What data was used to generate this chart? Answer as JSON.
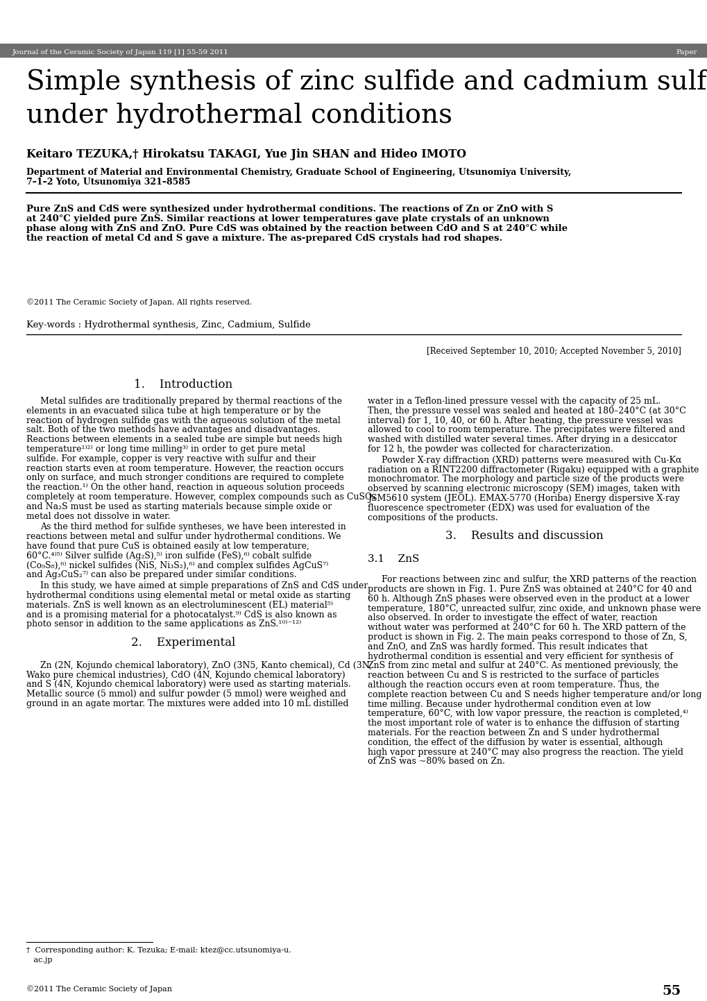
{
  "header_bar_color": "#6e6e6e",
  "header_text": "Journal of the Ceramic Society of Japan 119 [1] 55-59 2011",
  "header_right_text": "Paper",
  "title_line1": "Simple synthesis of zinc sulfide and cadmium sulfide",
  "title_line2": "under hydrothermal conditions",
  "title_font_size": 28,
  "authors": "Keitaro TEZUKA,† Hirokatsu TAKAGI, Yue Jin SHAN and Hideo IMOTO",
  "authors_font_size": 11.5,
  "affiliation_line1": "Department of Material and Environmental Chemistry, Graduate School of Engineering, Utsunomiya University,",
  "affiliation_line2": "7–1–2 Yoto, Utsunomiya 321–8585",
  "affiliation_font_size": 9,
  "abstract_text": "Pure ZnS and CdS were synthesized under hydrothermal conditions. The reactions of Zn or ZnO with S at 240°C yielded pure ZnS. Similar reactions at lower temperatures gave plate crystals of an unknown phase along with ZnS and ZnO. Pure CdS was obtained by the reaction between CdO and S at 240°C while the reaction of metal Cd and S gave a mixture. The as-prepared CdS crystals had rod shapes.",
  "abstract_font_size": 9.5,
  "copyright_text": "©2011 The Ceramic Society of Japan. All rights reserved.",
  "copyright_font_size": 8,
  "keywords": "Key-words : Hydrothermal synthesis, Zinc, Cadmium, Sulfide",
  "keywords_font_size": 9.5,
  "received_text": "[Received September 10, 2010; Accepted November 5, 2010]",
  "received_font_size": 8.5,
  "section1_title": "1.    Introduction",
  "section_font_size": 12,
  "intro_p1": "Metal sulfides are traditionally prepared by thermal reactions of the elements in an evacuated silica tube at high temperature or by the reaction of hydrogen sulfide gas with the aqueous solution of the metal salt. Both of the two methods have advantages and disadvantages. Reactions between elements in a sealed tube are simple but needs high temperature¹⁾²⁾ or long time milling³⁾ in order to get pure metal sulfide. For example, copper is very reactive with sulfur and their reaction starts even at room temperature. However, the reaction occurs only on surface, and much stronger conditions are required to complete the reaction.¹⁾ On the other hand, reaction in aqueous solution proceeds completely at room temperature. However, complex compounds such as CuSO₄ and Na₂S must be used as starting materials because simple oxide or metal does not dissolve in water.",
  "intro_p2": "As the third method for sulfide syntheses, we have been interested in reactions between metal and sulfur under hydrothermal conditions. We have found that pure CuS is obtained easily at low temperature, 60°C.⁴⁾⁵⁾ Silver sulfide (Ag₂S),⁵⁾ iron sulfide (FeS),⁶⁾ cobalt sulfide (Co₉S₈),⁶⁾ nickel sulfides (NiS, Ni₃S₂),⁶⁾ and complex sulfides AgCuS⁷⁾ and Ag₃CuS₂⁷⁾ can also be prepared under similar conditions.",
  "intro_p3": "In this study, we have aimed at simple preparations of ZnS and CdS under hydrothermal conditions using elemental metal or metal oxide as starting materials. ZnS is well known as an electroluminescent (EL) material⁵⁾ and is a promising material for a photocatalyst.⁹⁾ CdS is also known as photo sensor in addition to the same applications as ZnS.¹⁰⁾⁻¹²⁾",
  "section2_title": "2.    Experimental",
  "exp_p1": "Zn (2N, Kojundo chemical laboratory), ZnO (3N5, Kanto chemical), Cd (3N, Wako pure chemical industries), CdO (4N, Kojundo chemical laboratory) and S (4N, Kojundo chemical laboratory) were used as starting materials. Metallic source (5 mmol) and sulfur powder (5 mmol) were weighed and ground in an agate mortar. The mixtures were added into 10 mL distilled",
  "right_exp_cont": "water in a Teflon-lined pressure vessel with the capacity of 25 mL. Then, the pressure vessel was sealed and heated at 180–240°C (at 30°C interval) for 1, 10, 40, or 60 h. After heating, the pressure vessel was allowed to cool to room temperature. The precipitates were filtered and washed with distilled water several times. After drying in a desiccator for 12 h, the powder was collected for characterization.",
  "right_xrd_p": "Powder X-ray diffraction (XRD) patterns were measured with Cu-Kα radiation on a RINT2200 diffractometer (Rigaku) equipped with a graphite monochromator. The morphology and particle size of the products were observed by scanning electronic microscopy (SEM) images, taken with JSM5610 system (JEOL). EMAX-5770 (Horiba) Energy dispersive X-ray fluorescence spectrometer (EDX) was used for evaluation of the compositions of the products.",
  "section3_title": "3.    Results and discussion",
  "section31_title": "3.1    ZnS",
  "section31_font_size": 11,
  "zns_p1": "For reactions between zinc and sulfur, the XRD patterns of the reaction products are shown in Fig. 1. Pure ZnS was obtained at 240°C for 40 and 60 h. Although ZnS phases were observed even in the product at a lower temperature, 180°C, unreacted sulfur, zinc oxide, and unknown phase were also observed. In order to investigate the effect of water, reaction without water was performed at 240°C for 60 h. The XRD pattern of the product is shown in Fig. 2. The main peaks correspond to those of Zn, S, and ZnO, and ZnS was hardly formed. This result indicates that hydrothermal condition is essential and very efficient for synthesis of ZnS from zinc metal and sulfur at 240°C. As mentioned previously, the reaction between Cu and S is restricted to the surface of particles although the reaction occurs even at room temperature. Thus, the complete reaction between Cu and S needs higher temperature and/or long time milling. Because under hydrothermal condition even at low temperature, 60°C, with low vapor pressure, the reaction is completed,⁴⁾ the most important role of water is to enhance the diffusion of starting materials. For the reaction between Zn and S under hydrothermal condition, the effect of the diffusion by water is essential, although high vapor pressure at 240°C may also progress the reaction. The yield of ZnS was ~80% based on Zn.",
  "footnote": "†  Corresponding author: K. Tezuka; E-mail: ktez@cc.utsunomiya-u.\n   ac.jp",
  "footnote_font_size": 8,
  "page_number": "55",
  "copyright_bottom": "©2011 The Ceramic Society of Japan",
  "body_font_size": 9.0,
  "body_font_family": "DejaVu Serif",
  "bg_color": "#ffffff"
}
